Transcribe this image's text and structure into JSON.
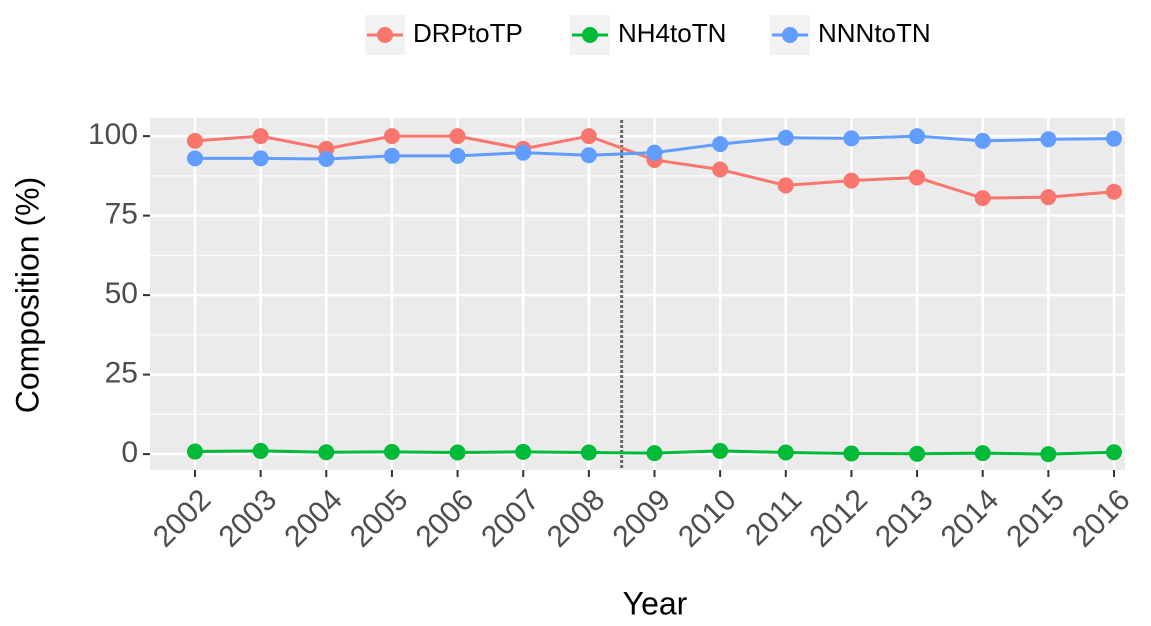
{
  "chart_data": {
    "type": "line",
    "x_label": "Year",
    "y_label": "Composition (%)",
    "categories": [
      "2002",
      "2003",
      "2004",
      "2005",
      "2006",
      "2007",
      "2008",
      "2009",
      "2010",
      "2011",
      "2012",
      "2013",
      "2014",
      "2015",
      "2016"
    ],
    "series": [
      {
        "name": "DRPtoTP",
        "color": "#F8766D",
        "values": [
          98.5,
          100,
          96,
          100,
          100,
          96,
          100,
          92.5,
          89.5,
          84.5,
          86,
          87,
          80.5,
          80.8,
          82.5
        ]
      },
      {
        "name": "NH4toTN",
        "color": "#00BA38",
        "values": [
          0.8,
          1,
          0.6,
          0.7,
          0.5,
          0.7,
          0.5,
          0.3,
          1,
          0.5,
          0.2,
          0.1,
          0.3,
          0,
          0.6
        ]
      },
      {
        "name": "NNNtoTN",
        "color": "#619CFF",
        "values": [
          93,
          93,
          92.8,
          93.8,
          93.8,
          94.8,
          94,
          94.8,
          97.5,
          99.5,
          99.3,
          100,
          98.5,
          99,
          99.2
        ]
      }
    ],
    "vline_x": 2008.5,
    "ylim": [
      -5,
      105.7
    ],
    "yticks": [
      0,
      25,
      50,
      75,
      100
    ],
    "grid": true,
    "legend": "top"
  }
}
